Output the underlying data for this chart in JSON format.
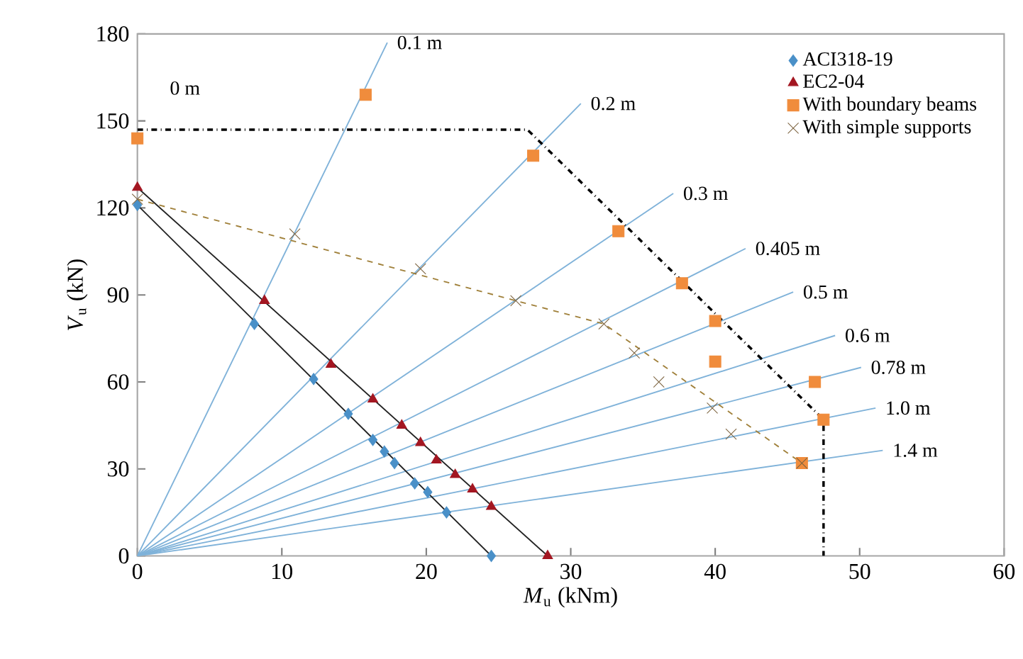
{
  "chart_data": {
    "type": "line",
    "xlabel": "*M*$_{u}$ (kNm)",
    "ylabel": "*V*$_{u}$ (kN)",
    "xlim": [
      0,
      60
    ],
    "ylim": [
      0,
      180
    ],
    "xticks": [
      0,
      10,
      20,
      30,
      40,
      50,
      60
    ],
    "yticks": [
      0,
      30,
      60,
      90,
      120,
      150,
      180
    ],
    "grid": false,
    "legend": "top right",
    "series": [
      {
        "name": "0.1 m",
        "color": "#7fb2d9",
        "marker": "none",
        "line_style": "solid",
        "x": [
          0,
          17.3
        ],
        "values": [
          0,
          177
        ]
      },
      {
        "name": "0.2 m",
        "color": "#7fb2d9",
        "marker": "none",
        "line_style": "solid",
        "x": [
          0,
          30.7
        ],
        "values": [
          0,
          156
        ]
      },
      {
        "name": "0.3 m",
        "color": "#7fb2d9",
        "marker": "none",
        "line_style": "solid",
        "x": [
          0,
          37.1
        ],
        "values": [
          0,
          125
        ]
      },
      {
        "name": "0.405 m",
        "color": "#7fb2d9",
        "marker": "none",
        "line_style": "solid",
        "x": [
          0,
          42.1
        ],
        "values": [
          0,
          106
        ]
      },
      {
        "name": "0.5 m",
        "color": "#7fb2d9",
        "marker": "none",
        "line_style": "solid",
        "x": [
          0,
          45.4
        ],
        "values": [
          0,
          91
        ]
      },
      {
        "name": "0.6 m",
        "color": "#7fb2d9",
        "marker": "none",
        "line_style": "solid",
        "x": [
          0,
          48.3
        ],
        "values": [
          0,
          76
        ]
      },
      {
        "name": "0.78 m",
        "color": "#7fb2d9",
        "marker": "none",
        "line_style": "solid",
        "x": [
          0,
          50.1
        ],
        "values": [
          0,
          65
        ]
      },
      {
        "name": "1.0 m",
        "color": "#7fb2d9",
        "marker": "none",
        "line_style": "solid",
        "x": [
          0,
          51.1
        ],
        "values": [
          0,
          51
        ]
      },
      {
        "name": "1.4 m",
        "color": "#7fb2d9",
        "marker": "none",
        "line_style": "solid",
        "x": [
          0,
          51.6
        ],
        "values": [
          0,
          36.4
        ]
      },
      {
        "color": "#000000",
        "marker": "none",
        "line_style": "dashdot",
        "x": [
          0,
          27,
          47.5,
          47.5
        ],
        "values": [
          147,
          147,
          47,
          0
        ]
      },
      {
        "color": "#222222",
        "marker": "none",
        "line_style": "solid",
        "x": [
          0,
          24.5
        ],
        "values": [
          121,
          0
        ]
      },
      {
        "color": "#222222",
        "marker": "none",
        "line_style": "solid",
        "x": [
          0,
          28.4
        ],
        "values": [
          127,
          0
        ]
      },
      {
        "color": "#a0803a",
        "marker": "none",
        "line_style": "dashed",
        "x": [
          0,
          26.2,
          32.3,
          46
        ],
        "values": [
          123,
          88,
          80,
          32
        ]
      },
      {
        "type": "scatter",
        "name": "ACI318-19",
        "color": "#4a90c8",
        "marker": "diamond",
        "x": [
          0,
          8.1,
          12.2,
          14.6,
          16.3,
          17.1,
          17.8,
          19.2,
          20.1,
          21.4,
          24.5
        ],
        "values": [
          121,
          80,
          61,
          49,
          40,
          36,
          32,
          25,
          22,
          15,
          0
        ]
      },
      {
        "type": "scatter",
        "name": "EC2-04",
        "color": "#a31621",
        "marker": "triangle",
        "x": [
          0,
          8.8,
          13.4,
          16.3,
          18.3,
          19.6,
          20.7,
          22,
          23.2,
          24.5,
          28.4
        ],
        "values": [
          127,
          88,
          66,
          54,
          45,
          39,
          33,
          28,
          23,
          17,
          0
        ]
      },
      {
        "type": "scatter",
        "name": "With boundary beams",
        "color": "#f08c3c",
        "marker": "square",
        "x": [
          0,
          15.8,
          27.4,
          33.3,
          37.7,
          40,
          40,
          46.9,
          47.5,
          46
        ],
        "values": [
          144,
          159,
          138,
          112,
          94,
          81,
          67,
          60,
          47,
          32
        ]
      },
      {
        "type": "scatter",
        "name": "With simple supports",
        "color": "#7d6440",
        "marker": "cross",
        "x": [
          0,
          10.9,
          19.6,
          26.2,
          32.3,
          34.4,
          36.1,
          39.8,
          41.1,
          46
        ],
        "values": [
          123,
          111,
          99,
          88,
          80,
          70,
          60,
          51,
          42,
          32
        ]
      }
    ],
    "annotations": [
      "0 m"
    ]
  }
}
